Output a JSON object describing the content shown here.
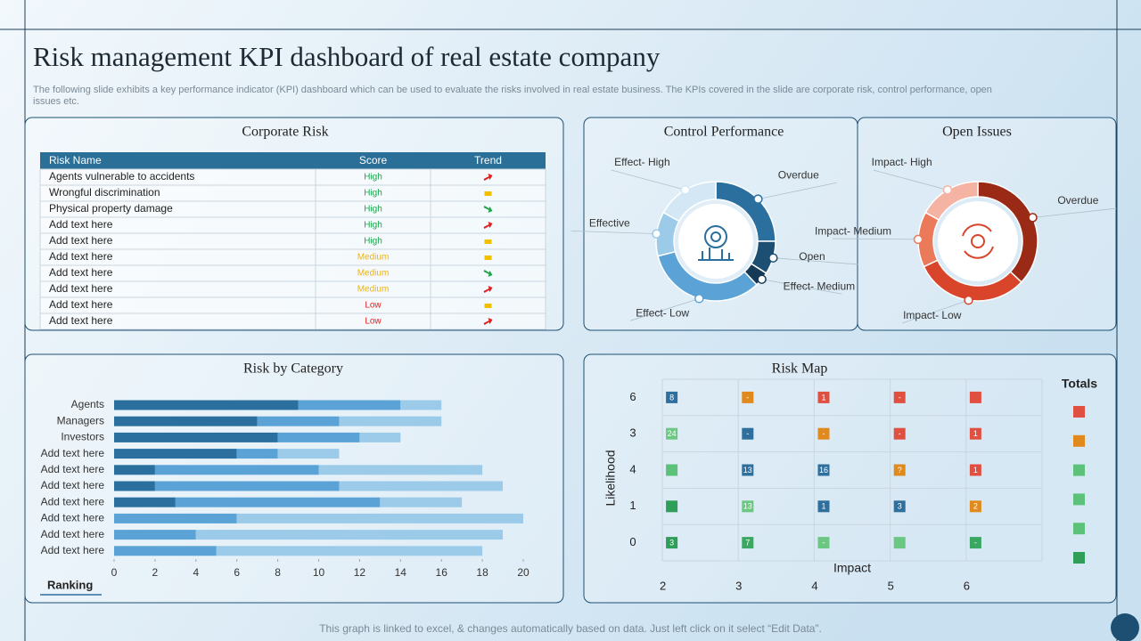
{
  "header": {
    "title": "Risk management KPI dashboard of real estate company",
    "subtitle_lines": [
      "The following slide exhibits a key performance indicator (KPI) dashboard which can be used to evaluate the risks involved in real estate business. The KPIs covered in the slide are corporate risk, control performance, open",
      "issues etc."
    ],
    "footer": "This graph is linked to excel, & changes automatically based on data. Just left click on it select “Edit Data”."
  },
  "corporate_risk": {
    "title": "Corporate Risk",
    "columns": [
      "Risk Name",
      "Score",
      "Trend"
    ],
    "rows": [
      [
        "Agents vulnerable to accidents",
        "High"
      ],
      [
        "Wrongful discrimination",
        "High"
      ],
      [
        "Physical property damage",
        "High"
      ],
      [
        "Add text here",
        "High"
      ],
      [
        "Add text here",
        "High"
      ],
      [
        "Add text here",
        "Medium"
      ],
      [
        "Add text here",
        "Medium"
      ],
      [
        "Add text here",
        "Medium"
      ],
      [
        "Add text here",
        "Low"
      ],
      [
        "Add text here",
        "Low"
      ]
    ],
    "trends": [
      "up",
      "flat",
      "down",
      "up",
      "flat",
      "flat",
      "down",
      "up",
      "flat",
      "up"
    ],
    "score_colors": {
      "High": "#1aa84a",
      "Medium": "#f0b400",
      "Low": "#e02020"
    }
  },
  "chart_data": [
    {
      "type": "donut",
      "title": "Control Performance",
      "categories": [
        "Overdue",
        "Open",
        "Effect- Medium",
        "Effect- Low",
        "Effective",
        "Effect- High"
      ],
      "values": [
        25,
        9,
        4,
        33,
        12,
        17
      ],
      "colors": [
        "#2a6f9e",
        "#1d4f72",
        "#163a55",
        "#5ba3d6",
        "#9ccbea",
        "#d3e7f5"
      ]
    },
    {
      "type": "donut",
      "title": "Open Issues",
      "categories": [
        "Overdue",
        "Impact- Low",
        "Impact- Medium",
        "Impact- High"
      ],
      "values": [
        37,
        31,
        15,
        17
      ],
      "colors": [
        "#9a2a16",
        "#d9452a",
        "#eb7a5a",
        "#f4b3a3"
      ]
    },
    {
      "type": "bar",
      "orientation": "horizontal",
      "stacked": true,
      "title": "Risk by Category",
      "xlabel": "Ranking",
      "categories": [
        "Agents",
        "Managers",
        "Investors",
        "Add text here",
        "Add text here",
        "Add text here",
        "Add text here",
        "Add text here",
        "Add text here",
        "Add text here"
      ],
      "series": [
        {
          "color": "#2a6f9e",
          "values": [
            9,
            7,
            8,
            6,
            2,
            2,
            3,
            0,
            0,
            0
          ]
        },
        {
          "color": "#5ba3d6",
          "values": [
            5,
            4,
            4,
            2,
            8,
            9,
            10,
            6,
            4,
            5
          ]
        },
        {
          "color": "#9ccbea",
          "values": [
            2,
            5,
            2,
            3,
            8,
            8,
            4,
            14,
            15,
            13
          ]
        }
      ],
      "xlim": [
        0,
        20
      ],
      "xticks": [
        0,
        2,
        4,
        6,
        8,
        10,
        12,
        14,
        16,
        18,
        20
      ]
    }
  ],
  "risk_map": {
    "title": "Risk Map",
    "ylabel": "Likelihood",
    "xlabel": "Impact",
    "totals_label": "Totals",
    "y_categories": [
      "6",
      "3",
      "4",
      "1",
      "0"
    ],
    "x_categories": [
      "2",
      "3",
      "4",
      "5",
      "6"
    ],
    "cells": [
      [
        {
          "label": "8",
          "color": "#2e6f9e"
        },
        {
          "label": "-",
          "color": "#e08a1e"
        },
        {
          "label": "1",
          "color": "#e05040"
        },
        {
          "label": "-",
          "color": "#e05040"
        },
        {
          "color": "#e05040"
        }
      ],
      [
        {
          "label": "24",
          "color": "#6cc783"
        },
        {
          "label": "-",
          "color": "#2e6f9e"
        },
        {
          "label": "-",
          "color": "#e08a1e"
        },
        {
          "label": "-",
          "color": "#e05040"
        },
        {
          "label": "1",
          "color": "#e05040"
        }
      ],
      [
        {
          "color": "#5cc27a"
        },
        {
          "label": "13",
          "color": "#2e6f9e"
        },
        {
          "label": "16",
          "color": "#2e6f9e"
        },
        {
          "label": "?",
          "color": "#e08a1e"
        },
        {
          "label": "1",
          "color": "#e05040"
        }
      ],
      [
        {
          "color": "#2e9e58"
        },
        {
          "label": "13",
          "color": "#6cc783"
        },
        {
          "label": "1",
          "color": "#2e6f9e"
        },
        {
          "label": "3",
          "color": "#2e6f9e"
        },
        {
          "label": "2",
          "color": "#e08a1e"
        }
      ],
      [
        {
          "label": "3",
          "color": "#2e9e58"
        },
        {
          "label": "7",
          "color": "#3aa862"
        },
        {
          "label": "-",
          "color": "#6cc783"
        },
        {
          "color": "#6cc783"
        },
        {
          "label": "-",
          "color": "#3aa862"
        }
      ]
    ],
    "totals": [
      "#e05040",
      "#e08a1e",
      "#5cc27a",
      "#5cc27a",
      "#5cc27a",
      "#2e9e58"
    ]
  }
}
